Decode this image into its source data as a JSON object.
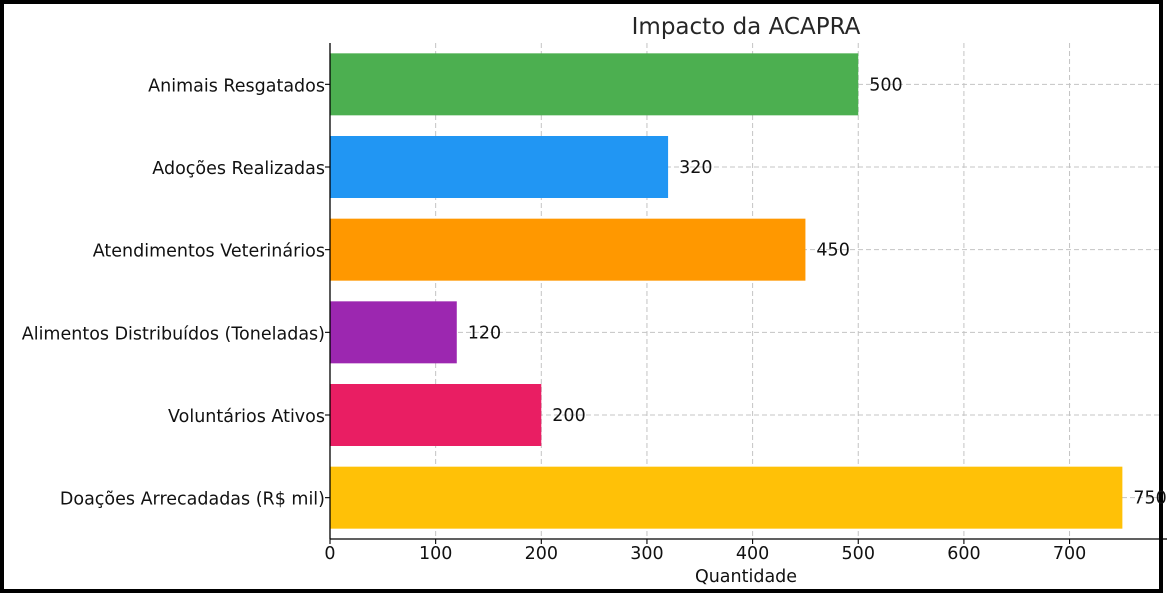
{
  "chart_data": {
    "type": "bar",
    "orientation": "horizontal",
    "title": "Impacto da ACAPRA",
    "xlabel": "Quantidade",
    "ylabel": "",
    "categories": [
      "Animais Resgatados",
      "Adoções Realizadas",
      "Atendimentos Veterinários",
      "Alimentos Distribuídos (Toneladas)",
      "Voluntários Ativos",
      "Doações Arrecadadas (R$ mil)"
    ],
    "values": [
      500,
      320,
      450,
      120,
      200,
      750
    ],
    "data_labels": [
      "500",
      "320",
      "450",
      "120",
      "200",
      "750"
    ],
    "colors": [
      "#4caf50",
      "#2196f3",
      "#ff9800",
      "#9c27b0",
      "#e91e63",
      "#ffc107"
    ],
    "xlim": [
      0,
      787
    ],
    "x_ticks": [
      0,
      100,
      200,
      300,
      400,
      500,
      600,
      700
    ],
    "x_tick_labels": [
      "0",
      "100",
      "200",
      "300",
      "400",
      "500",
      "600",
      "700"
    ],
    "grid": true,
    "legend": "none"
  }
}
